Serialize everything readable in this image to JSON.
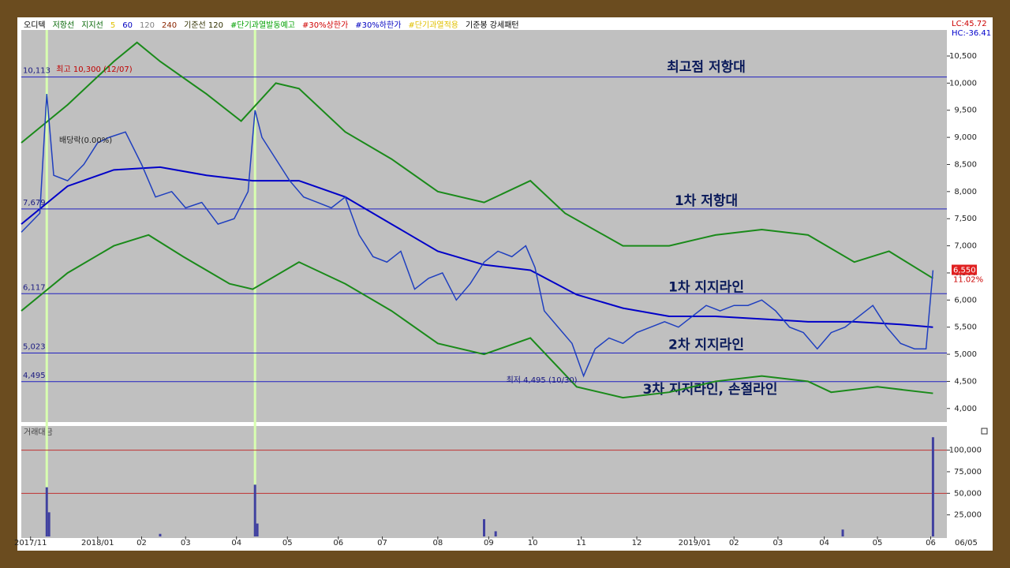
{
  "chart_data": {
    "type": "stock",
    "legend": [
      {
        "text": "오디텍",
        "color": "#000000"
      },
      {
        "text": "저항선",
        "color": "#006400"
      },
      {
        "text": "지지선",
        "color": "#006400"
      },
      {
        "text": "5",
        "color": "#e0c000"
      },
      {
        "text": "60",
        "color": "#0000c0"
      },
      {
        "text": "120",
        "color": "#808080"
      },
      {
        "text": "240",
        "color": "#8b2500"
      },
      {
        "text": "기준선 120",
        "color": "#303000"
      },
      {
        "text": "#단기과열발동예고",
        "color": "#00a000"
      },
      {
        "text": "#30%상한가",
        "color": "#d00000"
      },
      {
        "text": "#30%하한가",
        "color": "#0000c0"
      },
      {
        "text": "#단기과열적용",
        "color": "#e0c000"
      },
      {
        "text": "기준봉 강세패턴",
        "color": "#000000"
      }
    ],
    "lc_label": "LC:45.72",
    "hc_label": "HC:-36.41",
    "xlim": [
      0,
      400
    ],
    "xticks": [
      {
        "value": 4,
        "label": "2017/11"
      },
      {
        "value": 33,
        "label": "2018/01"
      },
      {
        "value": 52,
        "label": "02"
      },
      {
        "value": 71,
        "label": "03"
      },
      {
        "value": 93,
        "label": "04"
      },
      {
        "value": 115,
        "label": "05"
      },
      {
        "value": 137,
        "label": "06"
      },
      {
        "value": 156,
        "label": "07"
      },
      {
        "value": 180,
        "label": "08"
      },
      {
        "value": 202,
        "label": "09"
      },
      {
        "value": 221,
        "label": "10"
      },
      {
        "value": 242,
        "label": "11"
      },
      {
        "value": 266,
        "label": "12"
      },
      {
        "value": 291,
        "label": "2019/01"
      },
      {
        "value": 308,
        "label": "02"
      },
      {
        "value": 327,
        "label": "03"
      },
      {
        "value": 347,
        "label": "04"
      },
      {
        "value": 370,
        "label": "05"
      },
      {
        "value": 393,
        "label": "06"
      }
    ],
    "current_date": "06/05",
    "ylim": [
      3750,
      10980
    ],
    "yticks": [
      {
        "value": 4000,
        "label": "4,000"
      },
      {
        "value": 4500,
        "label": "4,500"
      },
      {
        "value": 5000,
        "label": "5,000"
      },
      {
        "value": 5500,
        "label": "5,500"
      },
      {
        "value": 6000,
        "label": "6,000"
      },
      {
        "value": 6500,
        "label": "6,500"
      },
      {
        "value": 7000,
        "label": "7,000"
      },
      {
        "value": 7500,
        "label": "7,500"
      },
      {
        "value": 8000,
        "label": "8,000"
      },
      {
        "value": 8500,
        "label": "8,500"
      },
      {
        "value": 9000,
        "label": "9,000"
      },
      {
        "value": 9500,
        "label": "9,500"
      },
      {
        "value": 10000,
        "label": "10,000"
      },
      {
        "value": 10500,
        "label": "10,500"
      }
    ],
    "levels": [
      {
        "value": 10113,
        "label": "10,113",
        "note": "최고점 저항대"
      },
      {
        "value": 7679,
        "label": "7,679",
        "note": "1차 저항대"
      },
      {
        "value": 6117,
        "label": "6,117",
        "note": "1차 지지라인"
      },
      {
        "value": 5023,
        "label": "5,023",
        "note": "2차 지지라인"
      },
      {
        "value": 4495,
        "label": "4,495",
        "note": "3차 지지라인, 손절라인"
      }
    ],
    "highlight_x": [
      11,
      101
    ],
    "price": {
      "color": "#1f3fbf",
      "x": [
        0,
        8,
        11,
        14,
        20,
        27,
        33,
        38,
        45,
        52,
        58,
        65,
        71,
        78,
        85,
        92,
        98,
        101,
        104,
        110,
        116,
        122,
        128,
        134,
        140,
        146,
        152,
        158,
        164,
        170,
        176,
        182,
        188,
        194,
        200,
        206,
        212,
        218,
        222,
        226,
        232,
        238,
        243,
        248,
        254,
        260,
        266,
        272,
        278,
        284,
        290,
        296,
        302,
        308,
        314,
        320,
        326,
        332,
        338,
        344,
        350,
        356,
        362,
        368,
        374,
        380,
        386,
        391,
        394
      ],
      "values": [
        7250,
        7600,
        9800,
        8300,
        8200,
        8500,
        8900,
        9000,
        9100,
        8500,
        7900,
        8000,
        7700,
        7800,
        7400,
        7500,
        8000,
        9500,
        9000,
        8600,
        8200,
        7900,
        7800,
        7700,
        7900,
        7200,
        6800,
        6700,
        6900,
        6200,
        6400,
        6500,
        6000,
        6300,
        6700,
        6900,
        6800,
        7000,
        6600,
        5800,
        5500,
        5200,
        4600,
        5100,
        5300,
        5200,
        5400,
        5500,
        5600,
        5500,
        5700,
        5900,
        5800,
        5900,
        5900,
        6000,
        5800,
        5500,
        5400,
        5100,
        5400,
        5500,
        5700,
        5900,
        5500,
        5200,
        5100,
        5100,
        6550
      ]
    },
    "ma60": {
      "name": "60",
      "color": "#0000c8",
      "x": [
        0,
        20,
        40,
        60,
        80,
        100,
        120,
        140,
        160,
        180,
        200,
        220,
        240,
        260,
        280,
        300,
        320,
        340,
        360,
        380,
        394
      ],
      "values": [
        7400,
        8100,
        8400,
        8450,
        8300,
        8200,
        8200,
        7900,
        7400,
        6900,
        6650,
        6550,
        6100,
        5850,
        5700,
        5700,
        5650,
        5600,
        5600,
        5550,
        5500
      ]
    },
    "upper_band": {
      "color": "#1a8a1a",
      "x": [
        0,
        20,
        40,
        50,
        60,
        80,
        95,
        110,
        120,
        140,
        160,
        180,
        200,
        220,
        235,
        260,
        280,
        300,
        320,
        340,
        360,
        375,
        394
      ],
      "values": [
        8900,
        9600,
        10400,
        10750,
        10400,
        9800,
        9300,
        10000,
        9900,
        9100,
        8600,
        8000,
        7800,
        8200,
        7600,
        7000,
        7000,
        7200,
        7300,
        7200,
        6700,
        6900,
        6400
      ]
    },
    "lower_band": {
      "color": "#1a8a1a",
      "x": [
        0,
        20,
        40,
        55,
        70,
        90,
        100,
        120,
        140,
        160,
        180,
        200,
        220,
        240,
        260,
        280,
        300,
        320,
        340,
        350,
        370,
        394
      ],
      "values": [
        5800,
        6500,
        7000,
        7200,
        6800,
        6300,
        6200,
        6700,
        6300,
        5800,
        5200,
        5000,
        5300,
        4400,
        4200,
        4300,
        4500,
        4600,
        4500,
        4300,
        4400,
        4280
      ]
    },
    "annotations": {
      "high": "최고 10,300 (12/07)",
      "low": "최저 4,495 (10/30)",
      "dividend": "배당락(0.00%)"
    },
    "last_price": {
      "value": 6550,
      "label": "6,550",
      "change": "11.02%"
    },
    "volume": {
      "title": "거래대금",
      "color": "#4040a0",
      "ylim": [
        0,
        128000
      ],
      "yticks": [
        {
          "value": 25000,
          "label": "25,000"
        },
        {
          "value": 50000,
          "label": "50,000"
        },
        {
          "value": 75000,
          "label": "75,000"
        },
        {
          "value": 100000,
          "label": "100,000"
        }
      ],
      "levels": [
        100000,
        50000
      ],
      "x": [
        11,
        12,
        60,
        101,
        102,
        200,
        205,
        355,
        394
      ],
      "values": [
        57000,
        28000,
        3000,
        60000,
        15000,
        20000,
        6000,
        8000,
        115000
      ]
    }
  }
}
